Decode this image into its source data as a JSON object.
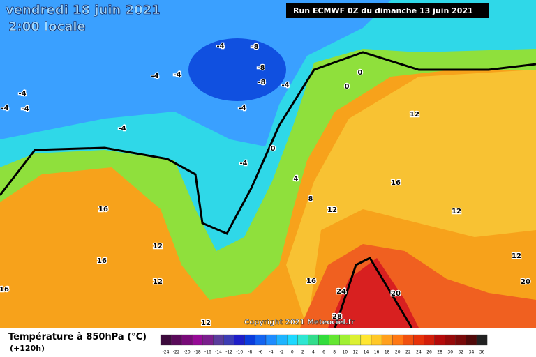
{
  "header": {
    "title": "vendredi 18 juin 2021",
    "subtitle": "2:00 locale",
    "run": "Run ECMWF 0Z du dimanche 13 juin 2021"
  },
  "map": {
    "contour_labels": [
      -4,
      -8,
      -8,
      -8,
      -4,
      -4,
      -4,
      -4,
      -4,
      -4,
      -4,
      -4,
      0,
      0,
      0,
      -4,
      4,
      8,
      12,
      12,
      16,
      12,
      12,
      16,
      12,
      16,
      12,
      16,
      16,
      24,
      20,
      28,
      20,
      12
    ]
  },
  "footer": {
    "copyright": "Copyright 2021 Meteociel.fr",
    "legend_title": "Température à 850hPa (°C)",
    "legend_subtitle": "(+120h)",
    "scale": [
      {
        "value": -24,
        "color": "#3c0a3c"
      },
      {
        "value": -22,
        "color": "#5a0a5a"
      },
      {
        "value": -20,
        "color": "#780a78"
      },
      {
        "value": -18,
        "color": "#960a96"
      },
      {
        "value": -16,
        "color": "#7a1e8c"
      },
      {
        "value": -14,
        "color": "#5a3c9c"
      },
      {
        "value": -12,
        "color": "#3c3cb4"
      },
      {
        "value": -10,
        "color": "#1e1ec8"
      },
      {
        "value": -8,
        "color": "#0a3cdc"
      },
      {
        "value": -6,
        "color": "#1464f0"
      },
      {
        "value": -4,
        "color": "#1e8cff"
      },
      {
        "value": -2,
        "color": "#1eb4ff"
      },
      {
        "value": 0,
        "color": "#1ed8ff"
      },
      {
        "value": 2,
        "color": "#2ee6d2"
      },
      {
        "value": 4,
        "color": "#32dc8c"
      },
      {
        "value": 6,
        "color": "#32dc3c"
      },
      {
        "value": 8,
        "color": "#64e632"
      },
      {
        "value": 10,
        "color": "#a0f032"
      },
      {
        "value": 12,
        "color": "#dcf032"
      },
      {
        "value": 14,
        "color": "#ffe632"
      },
      {
        "value": 16,
        "color": "#ffc828"
      },
      {
        "value": 18,
        "color": "#ffa01e"
      },
      {
        "value": 20,
        "color": "#ff7814"
      },
      {
        "value": 22,
        "color": "#f0500f"
      },
      {
        "value": 24,
        "color": "#e6320a"
      },
      {
        "value": 26,
        "color": "#d21e0a"
      },
      {
        "value": 28,
        "color": "#b40a0a"
      },
      {
        "value": 30,
        "color": "#960a0a"
      },
      {
        "value": 32,
        "color": "#780a0a"
      },
      {
        "value": 34,
        "color": "#500a0a"
      },
      {
        "value": 36,
        "color": "#222222"
      }
    ]
  }
}
